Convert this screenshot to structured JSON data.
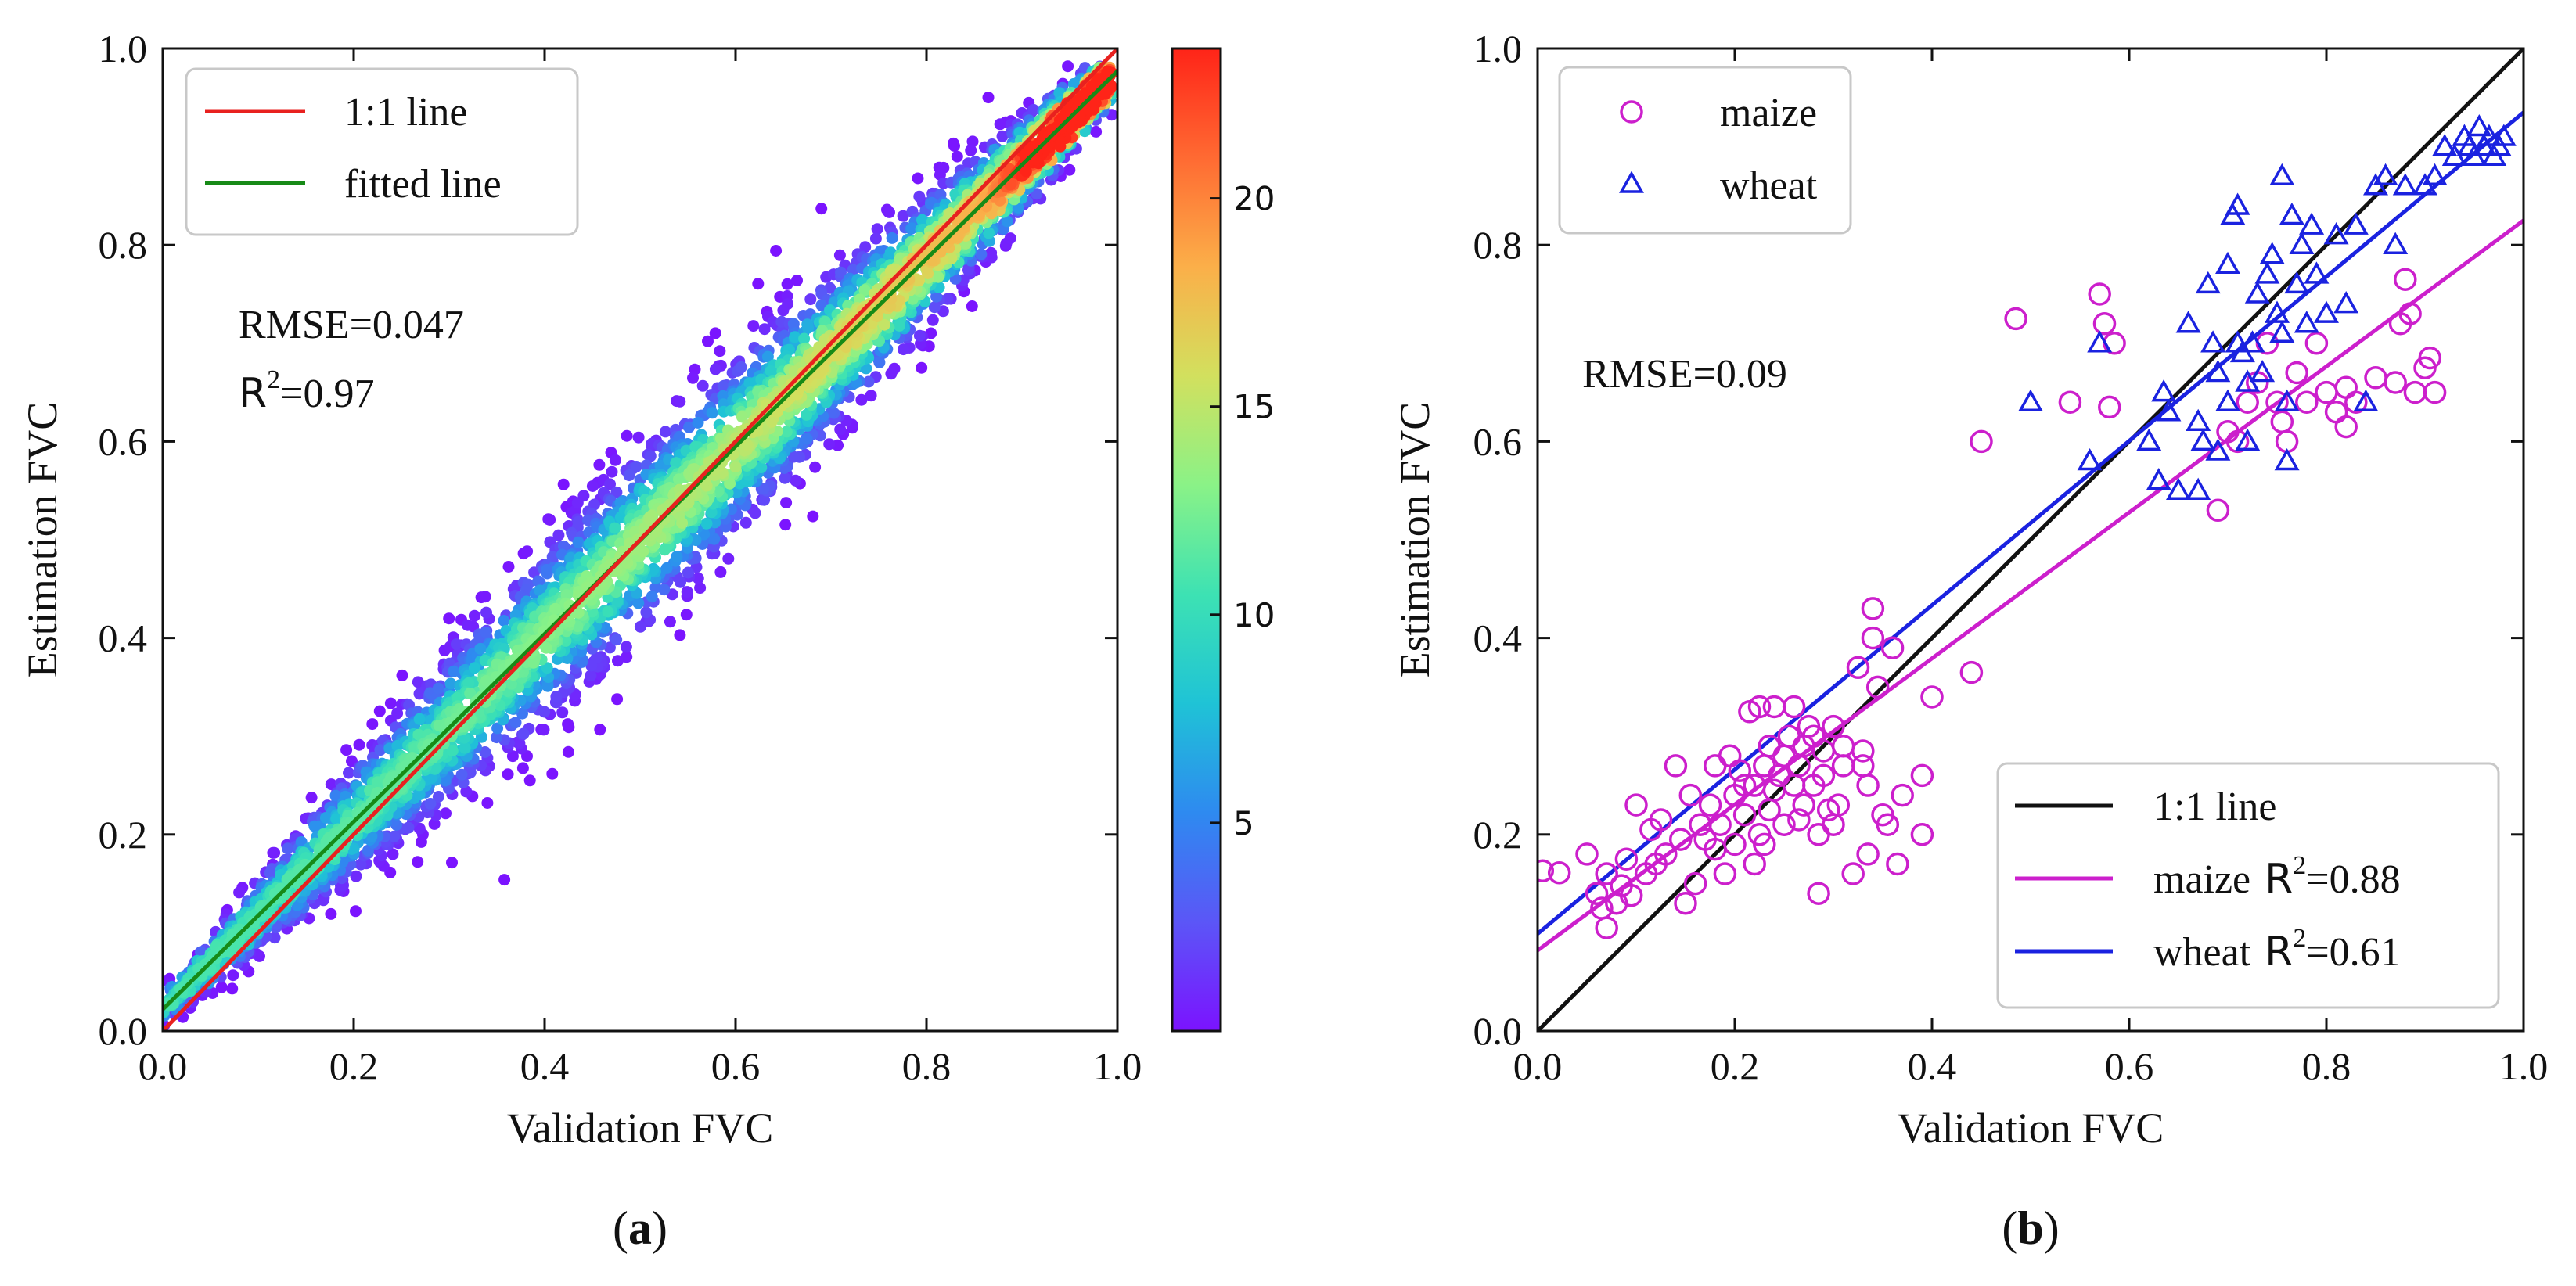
{
  "chart_data": [
    {
      "panel": "a",
      "type": "scatter",
      "subtype": "density-scatter",
      "xlabel": "Validation FVC",
      "ylabel": "Estimation FVC",
      "xlim": [
        0.0,
        1.0
      ],
      "ylim": [
        0.0,
        1.0
      ],
      "xticks": [
        "0.0",
        "0.2",
        "0.4",
        "0.6",
        "0.8",
        "1.0"
      ],
      "yticks": [
        "0.0",
        "0.2",
        "0.4",
        "0.6",
        "0.8",
        "1.0"
      ],
      "grid": false,
      "legend_position": "top-left",
      "lines": [
        {
          "name": "1:1 line",
          "color": "#e8211f",
          "slope": 1.0,
          "intercept": 0.0
        },
        {
          "name": "fitted line",
          "color": "#178a17",
          "slope": 0.955,
          "intercept": 0.022
        }
      ],
      "density_band": {
        "center_slope": 0.955,
        "center_intercept": 0.022,
        "point_count": 4200
      },
      "annotations": {
        "rmse": "RMSE=0.047",
        "r2_prefix": "R",
        "r2_exp": "2",
        "r2_value": "=0.97"
      },
      "colorbar": {
        "ticks": [
          "5",
          "10",
          "15",
          "20"
        ],
        "tick_values": [
          5,
          10,
          15,
          20
        ],
        "range": [
          0,
          23.6
        ],
        "stops": [
          "#7b13ff",
          "#5b56f7",
          "#2e8af0",
          "#1fc3d6",
          "#3de2b3",
          "#8af287",
          "#d2e05e",
          "#fbaf49",
          "#ff6a32",
          "#ff2418"
        ]
      },
      "panel_label": "a"
    },
    {
      "panel": "b",
      "type": "scatter",
      "xlabel": "Validation FVC",
      "ylabel": "Estimation FVC",
      "xlim": [
        0.0,
        1.0
      ],
      "ylim": [
        0.0,
        1.0
      ],
      "xticks": [
        "0.0",
        "0.2",
        "0.4",
        "0.6",
        "0.8",
        "1.0"
      ],
      "yticks": [
        "0.0",
        "0.2",
        "0.4",
        "0.6",
        "0.8",
        "1.0"
      ],
      "grid": false,
      "legend_markers_position": "top-left",
      "legend_lines_position": "bottom-right",
      "series": [
        {
          "name": "maize",
          "marker": "circle",
          "color": "#cc1fcc",
          "points": [
            [
              0.005,
              0.163
            ],
            [
              0.022,
              0.161
            ],
            [
              0.05,
              0.18
            ],
            [
              0.06,
              0.14
            ],
            [
              0.065,
              0.125
            ],
            [
              0.07,
              0.16
            ],
            [
              0.07,
              0.105
            ],
            [
              0.08,
              0.13
            ],
            [
              0.085,
              0.148
            ],
            [
              0.09,
              0.175
            ],
            [
              0.095,
              0.138
            ],
            [
              0.1,
              0.23
            ],
            [
              0.11,
              0.16
            ],
            [
              0.115,
              0.205
            ],
            [
              0.12,
              0.17
            ],
            [
              0.125,
              0.215
            ],
            [
              0.13,
              0.18
            ],
            [
              0.14,
              0.27
            ],
            [
              0.145,
              0.195
            ],
            [
              0.15,
              0.13
            ],
            [
              0.155,
              0.24
            ],
            [
              0.16,
              0.15
            ],
            [
              0.165,
              0.21
            ],
            [
              0.17,
              0.195
            ],
            [
              0.175,
              0.23
            ],
            [
              0.18,
              0.185
            ],
            [
              0.18,
              0.27
            ],
            [
              0.185,
              0.21
            ],
            [
              0.19,
              0.16
            ],
            [
              0.195,
              0.28
            ],
            [
              0.2,
              0.24
            ],
            [
              0.2,
              0.19
            ],
            [
              0.205,
              0.265
            ],
            [
              0.21,
              0.22
            ],
            [
              0.21,
              0.25
            ],
            [
              0.215,
              0.325
            ],
            [
              0.22,
              0.25
            ],
            [
              0.22,
              0.17
            ],
            [
              0.225,
              0.33
            ],
            [
              0.225,
              0.2
            ],
            [
              0.23,
              0.27
            ],
            [
              0.23,
              0.19
            ],
            [
              0.235,
              0.225
            ],
            [
              0.235,
              0.29
            ],
            [
              0.24,
              0.245
            ],
            [
              0.24,
              0.33
            ],
            [
              0.245,
              0.26
            ],
            [
              0.25,
              0.28
            ],
            [
              0.25,
              0.21
            ],
            [
              0.255,
              0.3
            ],
            [
              0.26,
              0.25
            ],
            [
              0.26,
              0.33
            ],
            [
              0.265,
              0.27
            ],
            [
              0.265,
              0.215
            ],
            [
              0.27,
              0.29
            ],
            [
              0.27,
              0.23
            ],
            [
              0.275,
              0.31
            ],
            [
              0.28,
              0.25
            ],
            [
              0.28,
              0.3
            ],
            [
              0.285,
              0.2
            ],
            [
              0.285,
              0.14
            ],
            [
              0.29,
              0.285
            ],
            [
              0.29,
              0.26
            ],
            [
              0.295,
              0.225
            ],
            [
              0.3,
              0.31
            ],
            [
              0.3,
              0.21
            ],
            [
              0.305,
              0.23
            ],
            [
              0.31,
              0.27
            ],
            [
              0.31,
              0.29
            ],
            [
              0.32,
              0.16
            ],
            [
              0.325,
              0.37
            ],
            [
              0.33,
              0.285
            ],
            [
              0.33,
              0.27
            ],
            [
              0.335,
              0.25
            ],
            [
              0.335,
              0.18
            ],
            [
              0.34,
              0.43
            ],
            [
              0.34,
              0.4
            ],
            [
              0.345,
              0.35
            ],
            [
              0.35,
              0.22
            ],
            [
              0.355,
              0.21
            ],
            [
              0.36,
              0.39
            ],
            [
              0.365,
              0.17
            ],
            [
              0.37,
              0.24
            ],
            [
              0.39,
              0.2
            ],
            [
              0.39,
              0.26
            ],
            [
              0.4,
              0.34
            ],
            [
              0.44,
              0.365
            ],
            [
              0.45,
              0.6
            ],
            [
              0.485,
              0.725
            ],
            [
              0.54,
              0.64
            ],
            [
              0.57,
              0.75
            ],
            [
              0.575,
              0.72
            ],
            [
              0.58,
              0.635
            ],
            [
              0.585,
              0.7
            ],
            [
              0.69,
              0.53
            ],
            [
              0.7,
              0.61
            ],
            [
              0.71,
              0.6
            ],
            [
              0.72,
              0.64
            ],
            [
              0.73,
              0.66
            ],
            [
              0.74,
              0.7
            ],
            [
              0.75,
              0.64
            ],
            [
              0.755,
              0.62
            ],
            [
              0.76,
              0.6
            ],
            [
              0.77,
              0.67
            ],
            [
              0.78,
              0.64
            ],
            [
              0.79,
              0.7
            ],
            [
              0.8,
              0.65
            ],
            [
              0.81,
              0.63
            ],
            [
              0.82,
              0.655
            ],
            [
              0.82,
              0.615
            ],
            [
              0.83,
              0.64
            ],
            [
              0.85,
              0.665
            ],
            [
              0.87,
              0.66
            ],
            [
              0.875,
              0.72
            ],
            [
              0.88,
              0.765
            ],
            [
              0.885,
              0.73
            ],
            [
              0.89,
              0.65
            ],
            [
              0.9,
              0.675
            ],
            [
              0.905,
              0.685
            ],
            [
              0.91,
              0.65
            ]
          ]
        },
        {
          "name": "wheat",
          "marker": "triangle",
          "color": "#1a22e0",
          "points": [
            [
              0.5,
              0.64
            ],
            [
              0.56,
              0.58
            ],
            [
              0.57,
              0.7
            ],
            [
              0.62,
              0.6
            ],
            [
              0.63,
              0.56
            ],
            [
              0.635,
              0.65
            ],
            [
              0.64,
              0.63
            ],
            [
              0.65,
              0.55
            ],
            [
              0.66,
              0.72
            ],
            [
              0.67,
              0.55
            ],
            [
              0.67,
              0.62
            ],
            [
              0.675,
              0.6
            ],
            [
              0.68,
              0.76
            ],
            [
              0.685,
              0.7
            ],
            [
              0.69,
              0.67
            ],
            [
              0.69,
              0.59
            ],
            [
              0.7,
              0.78
            ],
            [
              0.7,
              0.64
            ],
            [
              0.705,
              0.83
            ],
            [
              0.71,
              0.84
            ],
            [
              0.71,
              0.7
            ],
            [
              0.715,
              0.69
            ],
            [
              0.72,
              0.66
            ],
            [
              0.72,
              0.6
            ],
            [
              0.725,
              0.7
            ],
            [
              0.73,
              0.75
            ],
            [
              0.735,
              0.67
            ],
            [
              0.74,
              0.77
            ],
            [
              0.745,
              0.79
            ],
            [
              0.75,
              0.73
            ],
            [
              0.755,
              0.71
            ],
            [
              0.755,
              0.87
            ],
            [
              0.76,
              0.58
            ],
            [
              0.76,
              0.64
            ],
            [
              0.765,
              0.83
            ],
            [
              0.77,
              0.76
            ],
            [
              0.775,
              0.8
            ],
            [
              0.78,
              0.72
            ],
            [
              0.785,
              0.82
            ],
            [
              0.79,
              0.77
            ],
            [
              0.8,
              0.73
            ],
            [
              0.81,
              0.81
            ],
            [
              0.82,
              0.74
            ],
            [
              0.83,
              0.82
            ],
            [
              0.84,
              0.64
            ],
            [
              0.85,
              0.86
            ],
            [
              0.86,
              0.87
            ],
            [
              0.87,
              0.8
            ],
            [
              0.88,
              0.86
            ],
            [
              0.9,
              0.86
            ],
            [
              0.91,
              0.87
            ],
            [
              0.92,
              0.9
            ],
            [
              0.93,
              0.89
            ],
            [
              0.94,
              0.91
            ],
            [
              0.945,
              0.9
            ],
            [
              0.95,
              0.89
            ],
            [
              0.955,
              0.92
            ],
            [
              0.96,
              0.9
            ],
            [
              0.965,
              0.91
            ],
            [
              0.97,
              0.89
            ],
            [
              0.975,
              0.9
            ],
            [
              0.98,
              0.91
            ]
          ]
        }
      ],
      "lines": [
        {
          "name": "1:1 line",
          "color": "#111111",
          "slope": 1.0,
          "intercept": 0.0,
          "r2_label": ""
        },
        {
          "name": "maize",
          "color": "#cc1fcc",
          "slope": 0.743,
          "intercept": 0.082,
          "r2_label": "=0.88"
        },
        {
          "name": "wheat",
          "color": "#1a22e0",
          "slope": 0.836,
          "intercept": 0.099,
          "r2_label": "=0.61"
        }
      ],
      "annotations": {
        "rmse": "RMSE=0.09"
      },
      "panel_label": "b"
    }
  ]
}
